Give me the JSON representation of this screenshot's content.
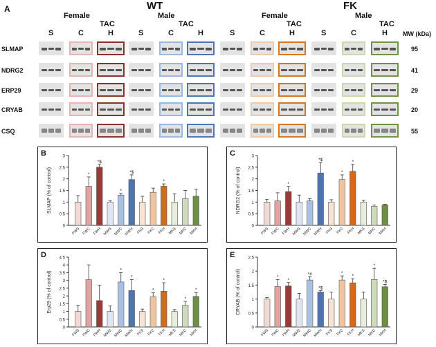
{
  "figure": {
    "panel_letter": "A",
    "groups": [
      {
        "label": "WT"
      },
      {
        "label": "FK"
      }
    ],
    "sexes": [
      "Female",
      "Male",
      "Female",
      "Male"
    ],
    "tac_label": "TAC",
    "columns": [
      "S",
      "C",
      "H"
    ],
    "mw_header": "MW (kDa)",
    "proteins": [
      {
        "name": "SLMAP",
        "mw": "95"
      },
      {
        "name": "NDRG2",
        "mw": "41"
      },
      {
        "name": "ERP29",
        "mw": "29"
      },
      {
        "name": "CRYAB",
        "mw": "20"
      },
      {
        "name": "CSQ",
        "mw": "55"
      }
    ],
    "colors": {
      "FWS": "#f2d9d6",
      "FWC": "#e0a5a2",
      "FWH": "#9b3a36",
      "MWS": "#dde6f2",
      "MWC": "#a9c1e1",
      "MWH": "#4c76ad",
      "FKS": "#f7e3d3",
      "FKC": "#f1c4a0",
      "FKH": "#d2691e",
      "MKS": "#e7eddc",
      "MKC": "#cfdcba",
      "MKH": "#6f8f45",
      "blot_bg": "#e3e3e3"
    }
  },
  "chart_data": [
    {
      "panel": "B",
      "type": "bar",
      "ylabel": "SLMAP (% of control)",
      "ylim": [
        0,
        3
      ],
      "yticks": [
        0,
        0.5,
        1,
        1.5,
        2,
        2.5,
        3
      ],
      "categories": [
        "FWS",
        "FWC",
        "FWH",
        "MWS",
        "MWC",
        "MWH",
        "FKS",
        "FKC",
        "FKH",
        "MKS",
        "MKC",
        "MKH"
      ],
      "values": [
        1.0,
        1.68,
        2.5,
        1.0,
        1.3,
        1.97,
        1.0,
        1.42,
        1.68,
        1.0,
        1.15,
        1.25
      ],
      "errors": [
        0.28,
        0.4,
        0.12,
        0.05,
        0.07,
        0.2,
        0.25,
        0.18,
        0.1,
        0.35,
        0.35,
        0.3
      ],
      "annotations": [
        "",
        "*",
        "*$",
        "",
        "*",
        "*$",
        "",
        "",
        "*",
        "",
        "",
        ""
      ]
    },
    {
      "panel": "C",
      "type": "bar",
      "ylabel": "NDRG2 (% of control)",
      "ylim": [
        0,
        3
      ],
      "yticks": [
        0,
        0.5,
        1,
        1.5,
        2,
        2.5,
        3
      ],
      "categories": [
        "FWS",
        "FWC",
        "FWH",
        "MWS",
        "MWC",
        "MWH",
        "FKS",
        "FKC",
        "FKH",
        "MKS",
        "MKC",
        "MKH"
      ],
      "values": [
        1.0,
        1.05,
        1.45,
        1.0,
        1.05,
        2.25,
        1.0,
        1.97,
        2.32,
        1.0,
        0.82,
        0.88
      ],
      "errors": [
        0.12,
        0.35,
        0.22,
        0.3,
        0.1,
        0.45,
        0.1,
        0.2,
        0.3,
        0.08,
        0.05,
        0.03
      ],
      "annotations": [
        "",
        "",
        "*",
        "",
        "",
        "*$",
        "",
        "*",
        "*",
        "",
        "",
        ""
      ]
    },
    {
      "panel": "D",
      "type": "bar",
      "ylabel": "Erp29 (% of control)",
      "ylim": [
        0,
        4.5
      ],
      "yticks": [
        0,
        0.5,
        1,
        1.5,
        2,
        2.5,
        3,
        3.5,
        4,
        4.5
      ],
      "categories": [
        "FWS",
        "FWC",
        "FWH",
        "MWS",
        "MWC",
        "MWH",
        "FKS",
        "FKC",
        "FKH",
        "MKS",
        "MKC",
        "MKH"
      ],
      "values": [
        1.0,
        3.05,
        1.7,
        1.0,
        2.9,
        2.35,
        1.0,
        1.95,
        2.3,
        1.0,
        1.4,
        1.97
      ],
      "errors": [
        0.4,
        0.95,
        1.0,
        0.35,
        0.6,
        0.7,
        0.15,
        0.25,
        0.55,
        0.12,
        0.25,
        0.25
      ],
      "annotations": [
        "",
        "",
        "",
        "",
        "*",
        "*",
        "",
        "*",
        "*",
        "",
        "*",
        "*"
      ]
    },
    {
      "panel": "E",
      "type": "bar",
      "ylabel": "CRYAB (% of control)",
      "ylim": [
        0,
        2.5
      ],
      "yticks": [
        0,
        0.5,
        1,
        1.5,
        2,
        2.5
      ],
      "categories": [
        "FWS",
        "FWC",
        "FWH",
        "MWS",
        "MWC",
        "MWH",
        "FKS",
        "FKC",
        "FKH",
        "MKS",
        "MKC",
        "MKH"
      ],
      "values": [
        1.0,
        1.45,
        1.47,
        1.0,
        1.68,
        1.25,
        1.0,
        1.68,
        1.58,
        1.0,
        1.7,
        1.44
      ],
      "errors": [
        0.05,
        0.25,
        0.12,
        0.2,
        0.12,
        0.05,
        0.25,
        0.15,
        0.15,
        0.25,
        0.4,
        0.08
      ],
      "annotations": [
        "",
        "*",
        "*",
        "",
        "*#",
        "*$",
        "",
        "*",
        "*",
        "",
        "*",
        "*$"
      ]
    }
  ]
}
